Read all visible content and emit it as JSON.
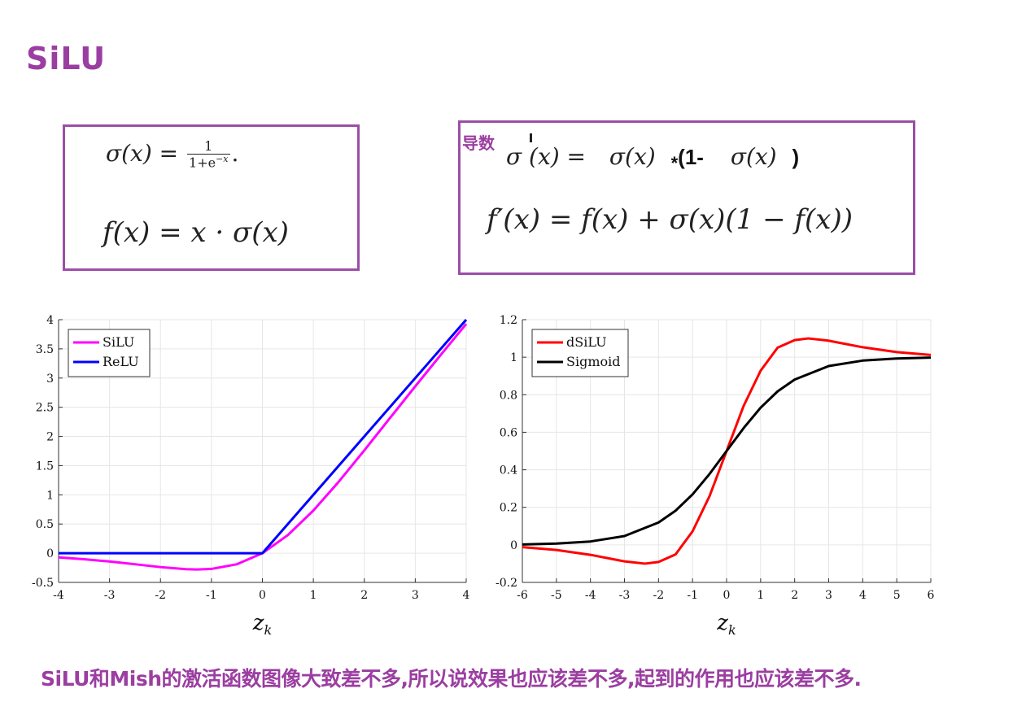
{
  "slide": {
    "title": "SiLU",
    "footer": "SiLU和Mish的激活函数图像大致差不多,所以说效果也应该差不多,起到的作用也应该差不多."
  },
  "formulas": {
    "left": {
      "sigma_lhs": "σ(x) =",
      "frac_num": "1",
      "frac_den_base": "1+e",
      "frac_den_exp": "−x",
      "frac_period": ".",
      "silu": "f(x) = x · σ(x)"
    },
    "right": {
      "label": "导数",
      "sigma_prime_lhs": "σ (x) =",
      "sigma_term": "σ(x)",
      "star": "*",
      "one_minus": "(1-",
      "sigma_term2": "σ(x)",
      "close_paren": ")",
      "f_prime": "f′(x) = f(x) + σ(x)(1 − f(x))"
    }
  },
  "colors": {
    "accent": "#9b3ea1",
    "silu": "#ff00ff",
    "relu": "#0000ff",
    "dsilu": "#ff0000",
    "sigmoid": "#000000",
    "grid": "#e6e6e6"
  },
  "chart_data": [
    {
      "type": "line",
      "xlabel": "z_k",
      "ylabel": "",
      "xlim": [
        -4,
        4
      ],
      "ylim": [
        -0.5,
        4
      ],
      "xticks": [
        "-4",
        "-3",
        "-2",
        "-1",
        "0",
        "1",
        "2",
        "3",
        "4"
      ],
      "yticks": [
        "-0.5",
        "0",
        "0.5",
        "1",
        "1.5",
        "2",
        "2.5",
        "3",
        "3.5",
        "4"
      ],
      "grid": true,
      "legend_position": "top-left",
      "series": [
        {
          "name": "SiLU",
          "color": "#ff00ff",
          "x": [
            -4,
            -3.5,
            -3,
            -2.5,
            -2,
            -1.5,
            -1.28,
            -1,
            -0.5,
            0,
            0.5,
            1,
            1.5,
            2,
            2.5,
            3,
            3.5,
            4
          ],
          "y": [
            -0.072,
            -0.103,
            -0.142,
            -0.189,
            -0.238,
            -0.274,
            -0.278,
            -0.269,
            -0.189,
            0,
            0.311,
            0.731,
            1.226,
            1.762,
            2.311,
            2.858,
            3.397,
            3.928
          ]
        },
        {
          "name": "ReLU",
          "color": "#0000ff",
          "x": [
            -4,
            0,
            4
          ],
          "y": [
            0,
            0,
            4
          ]
        }
      ]
    },
    {
      "type": "line",
      "xlabel": "z_k",
      "ylabel": "",
      "xlim": [
        -6,
        6
      ],
      "ylim": [
        -0.2,
        1.2
      ],
      "xticks": [
        "-6",
        "-5",
        "-4",
        "-3",
        "-2",
        "-1",
        "0",
        "1",
        "2",
        "3",
        "4",
        "5",
        "6"
      ],
      "yticks": [
        "-0.2",
        "0",
        "0.2",
        "0.4",
        "0.6",
        "0.8",
        "1",
        "1.2"
      ],
      "grid": true,
      "legend_position": "top-left",
      "series": [
        {
          "name": "dSiLU",
          "color": "#ff0000",
          "x": [
            -6,
            -5,
            -4,
            -3,
            -2.4,
            -2,
            -1.5,
            -1,
            -0.5,
            0,
            0.5,
            1,
            1.5,
            2,
            2.4,
            3,
            4,
            5,
            6
          ],
          "y": [
            -0.012,
            -0.027,
            -0.053,
            -0.088,
            -0.1,
            -0.091,
            -0.051,
            0.072,
            0.26,
            0.5,
            0.74,
            0.928,
            1.051,
            1.091,
            1.1,
            1.088,
            1.053,
            1.027,
            1.012
          ]
        },
        {
          "name": "Sigmoid",
          "color": "#000000",
          "x": [
            -6,
            -5,
            -4,
            -3,
            -2,
            -1.5,
            -1,
            -0.5,
            0,
            0.5,
            1,
            1.5,
            2,
            3,
            4,
            5,
            6
          ],
          "y": [
            0.002,
            0.007,
            0.018,
            0.047,
            0.119,
            0.182,
            0.269,
            0.378,
            0.5,
            0.622,
            0.731,
            0.818,
            0.881,
            0.953,
            0.982,
            0.993,
            0.998
          ]
        }
      ]
    }
  ]
}
